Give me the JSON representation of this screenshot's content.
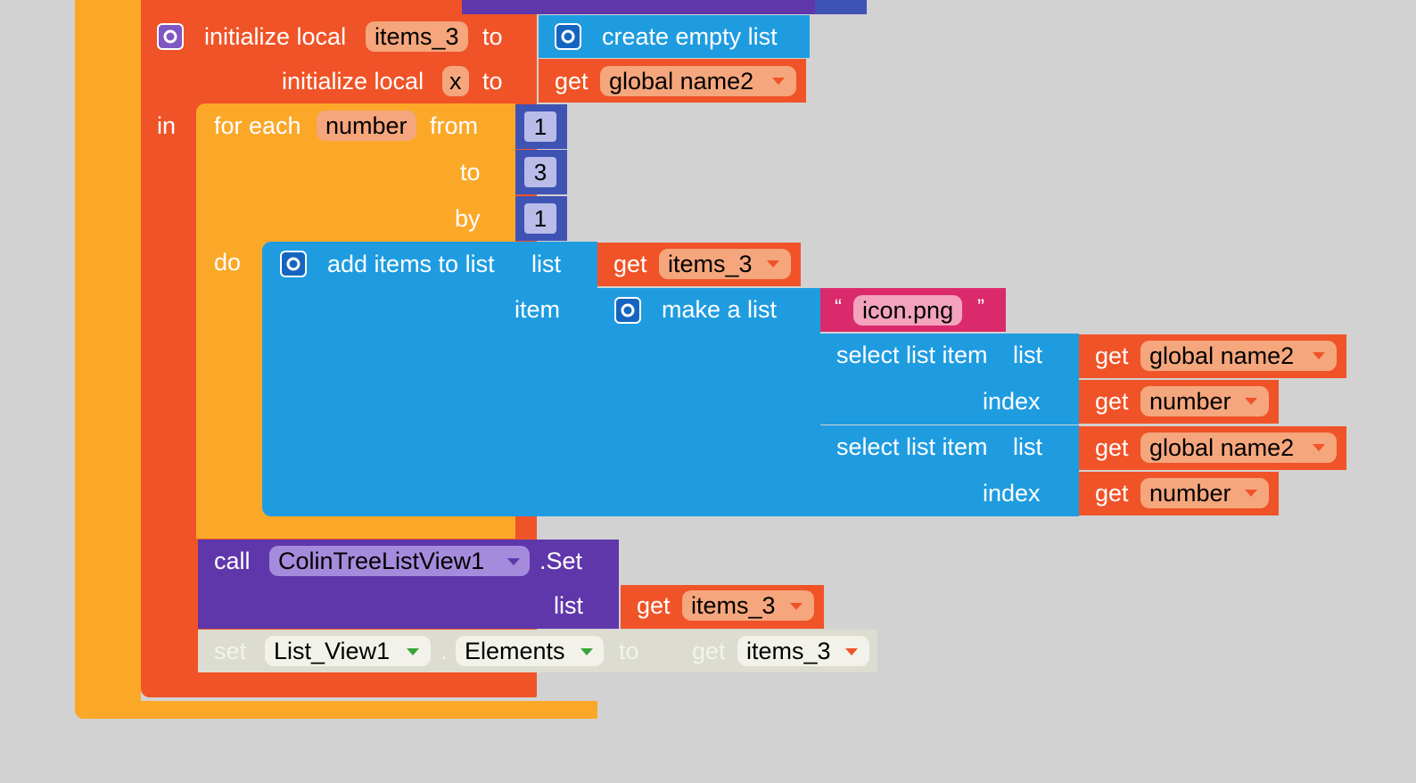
{
  "colors": {
    "orange": "#fba829",
    "red": "#f05327",
    "blue": "#1f9ce0",
    "purple": "#5f37ab",
    "pink": "#db2a6b",
    "math": "#3f53b4"
  },
  "init_block": {
    "line1_label": "initialize local",
    "var1": "items_3",
    "to1": "to",
    "line2_label": "initialize local",
    "var2": "x",
    "to2": "to",
    "in_label": "in"
  },
  "create_empty_list": {
    "label": "create empty list"
  },
  "get_global_name2_top": {
    "get": "get",
    "name": "global name2"
  },
  "for_each": {
    "label": "for each",
    "var": "number",
    "from": "from",
    "to": "to",
    "by": "by",
    "do": "do",
    "from_val": "1",
    "to_val": "3",
    "by_val": "1"
  },
  "add_items": {
    "label": "add items to list",
    "list_label": "list",
    "item_label": "item"
  },
  "get_items3_a": {
    "get": "get",
    "name": "items_3"
  },
  "make_list": {
    "label": "make a list"
  },
  "string_block": {
    "open_quote": "“",
    "value": "icon.png",
    "close_quote": "”"
  },
  "select1": {
    "label": "select list item",
    "list": "list",
    "index": "index"
  },
  "select2": {
    "label": "select list item",
    "list": "list",
    "index": "index"
  },
  "get_name2_a": {
    "get": "get",
    "name": "global name2"
  },
  "get_number_a": {
    "get": "get",
    "name": "number"
  },
  "get_name2_b": {
    "get": "get",
    "name": "global name2"
  },
  "get_number_b": {
    "get": "get",
    "name": "number"
  },
  "call_block": {
    "call": "call",
    "component": "ColinTreeListView1",
    "method": ".Set",
    "list_label": "list"
  },
  "get_items3_b": {
    "get": "get",
    "name": "items_3"
  },
  "set_block": {
    "set": "set",
    "component": "List_View1",
    "dot": ".",
    "property": "Elements",
    "to": "to",
    "get": "get",
    "name": "items_3"
  }
}
